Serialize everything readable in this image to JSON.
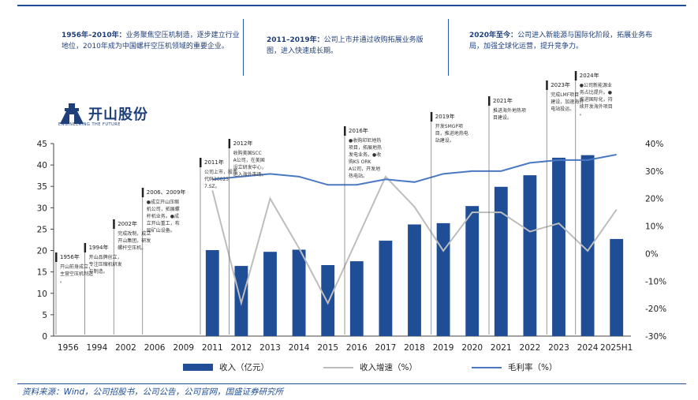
{
  "phases": [
    {
      "title": "1956年–2010年：",
      "text": "业务聚焦空压机制造，逐步建立行业地位，2010年成为中国螺杆空压机领域的重要企业。"
    },
    {
      "title": "2011–2019年：",
      "text": "公司上市并通过收购拓展业务版图，进入快速成长期。"
    },
    {
      "title": "2020年至今：",
      "text": "公司进入新能源与国际化阶段，拓展业务布局，加强全球化运营，提升竞争力。"
    }
  ],
  "logo": {
    "name": "开山股份",
    "tagline": "ENGINEERING THE FUTURE"
  },
  "source": "资料来源：Wind，公司招股书，公司公告，公司官网，国盛证券研究所",
  "legend": {
    "bar": "收入（亿元）",
    "growth": "收入增速（%）",
    "margin": "毛利率（%）"
  },
  "colors": {
    "bar": "#1f4e96",
    "growth": "#bdbdbd",
    "margin": "#4a78c2",
    "grid": "#d9d9d9"
  },
  "annotations": [
    {
      "year": "1956年",
      "text": "开山前身成立，主营空压机制造。"
    },
    {
      "year": "1994年",
      "text": "开山品牌创立，专注压缩机研发与制造。"
    },
    {
      "year": "2002年",
      "text": "完成改制，成立开山集团，研发螺杆空压机。"
    },
    {
      "year": "2006、2009年",
      "text": "●成立开山压缩机公司，拓展螺杆机业务。●成立开山重工，布局矿山设备。"
    },
    {
      "year": "2011年",
      "text": "公司上市，股票代码300257.SZ。"
    },
    {
      "year": "2012年",
      "text": "收购美国SCCA公司，在美国设立研发中心，进入海外市场。"
    },
    {
      "year": "2016年",
      "text": "●收购印尼地热项目，拓展地热发电业务。●收购KS ORKA公司，开发地热电站。"
    },
    {
      "year": "2019年",
      "text": "开发SMGP项目，推进地热电站建设。"
    },
    {
      "year": "2021年",
      "text": "推进海外地热项目建设。"
    },
    {
      "year": "2023年",
      "text": "完成LMF项目建设，加速海外电站投运。"
    },
    {
      "year": "2024年",
      "text": "●公司新能源业务占比提升。●推进国际化，持续开发海外项目。"
    }
  ],
  "chart_data": {
    "type": "bar",
    "categories": [
      "1956",
      "1994",
      "2002",
      "2006",
      "2009",
      "2011",
      "2012",
      "2013",
      "2014",
      "2015",
      "2016",
      "2017",
      "2018",
      "2019",
      "2020",
      "2021",
      "2022",
      "2023",
      "2024",
      "2025H1"
    ],
    "series": [
      {
        "name": "收入（亿元）",
        "type": "bar",
        "axis": "left",
        "values": [
          null,
          null,
          null,
          null,
          null,
          20.1,
          16.4,
          19.7,
          20.2,
          16.6,
          17.5,
          22.3,
          26.1,
          26.4,
          30.4,
          34.9,
          37.6,
          41.7,
          42.3,
          22.7
        ]
      },
      {
        "name": "收入增速（%）",
        "type": "line",
        "axis": "right",
        "values": [
          null,
          null,
          null,
          null,
          null,
          23,
          -18,
          20,
          2,
          -18,
          5,
          28,
          17,
          1,
          15,
          15,
          8,
          11,
          1,
          16
        ]
      },
      {
        "name": "毛利率（%）",
        "type": "line",
        "axis": "right",
        "values": [
          null,
          null,
          null,
          null,
          null,
          27,
          28,
          29,
          28,
          25,
          25,
          27,
          26,
          29,
          30,
          30,
          33,
          34,
          34,
          36
        ]
      }
    ],
    "ylim_left": [
      0,
      45
    ],
    "yticks_left": [
      0,
      5,
      10,
      15,
      20,
      25,
      30,
      35,
      40,
      45
    ],
    "ylim_right": [
      -30,
      40
    ],
    "yticks_right": [
      "-30%",
      "-20%",
      "-10%",
      "0%",
      "10%",
      "20%",
      "30%",
      "40%"
    ],
    "grid": false,
    "legend_position": "bottom"
  }
}
